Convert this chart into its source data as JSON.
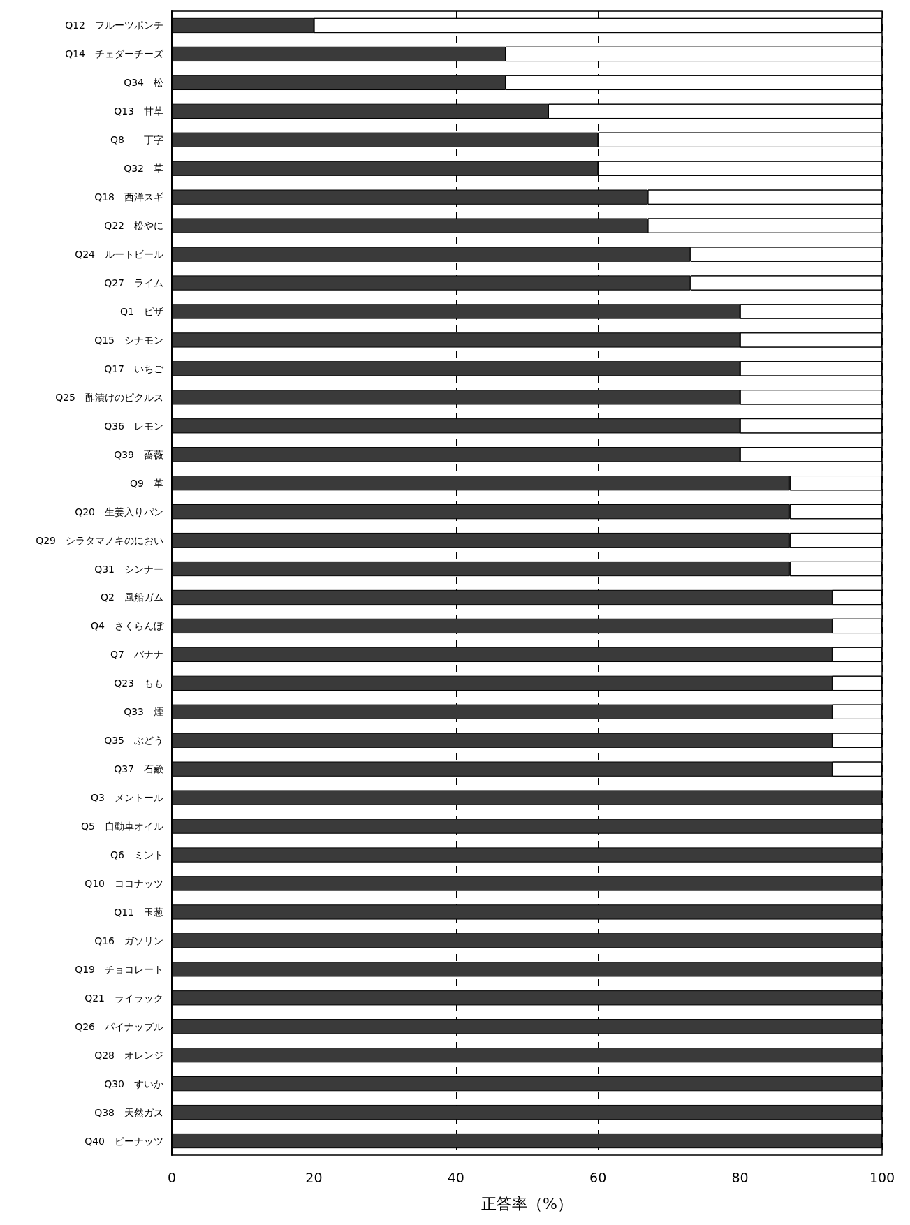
{
  "chart_data": {
    "type": "bar",
    "orientation": "horizontal",
    "stacked": true,
    "xlabel": "正答率（%）",
    "categories": [
      "Q12　フルーツポンチ",
      "Q14　チェダーチーズ",
      "Q34　松",
      "Q13　甘草",
      "Q8　　丁字",
      "Q32　草",
      "Q18　西洋スギ",
      "Q22　松やに",
      "Q24　ルートビール",
      "Q27　ライム",
      "Q1　ピザ",
      "Q15　シナモン",
      "Q17　いちご",
      "Q25　酢漬けのピクルス",
      "Q36　レモン",
      "Q39　薔薇",
      "Q9　革",
      "Q20　生姜入りパン",
      "Q29　シラタマノキのにおい",
      "Q31　シンナー",
      "Q2　風船ガム",
      "Q4　さくらんぼ",
      "Q7　バナナ",
      "Q23　もも",
      "Q33　煙",
      "Q35　ぶどう",
      "Q37　石鹸",
      "Q3　メントール",
      "Q5　自動車オイル",
      "Q6　ミント",
      "Q10　ココナッツ",
      "Q11　玉葱",
      "Q16　ガソリン",
      "Q19　チョコレート",
      "Q21　ライラック",
      "Q26　パイナップル",
      "Q28　オレンジ",
      "Q30　すいか",
      "Q38　天然ガス",
      "Q40　ピーナッツ"
    ],
    "series": [
      {
        "color": "#3a3a3a",
        "values": [
          20,
          47,
          47,
          53,
          60,
          60,
          67,
          67,
          73,
          73,
          80,
          80,
          80,
          80,
          80,
          80,
          87,
          87,
          87,
          87,
          93,
          93,
          93,
          93,
          93,
          93,
          93,
          100,
          100,
          100,
          100,
          100,
          100,
          100,
          100,
          100,
          100,
          100,
          100,
          100
        ]
      },
      {
        "color": "#ffffff",
        "values": [
          80,
          53,
          53,
          47,
          40,
          40,
          33,
          33,
          27,
          27,
          20,
          20,
          20,
          20,
          20,
          20,
          13,
          13,
          13,
          13,
          7,
          7,
          7,
          7,
          7,
          7,
          7,
          0,
          0,
          0,
          0,
          0,
          0,
          0,
          0,
          0,
          0,
          0,
          0,
          0
        ]
      }
    ],
    "xlim": [
      0,
      100
    ],
    "xticks": [
      0,
      20,
      40,
      60,
      80,
      100
    ],
    "grid": "x"
  }
}
